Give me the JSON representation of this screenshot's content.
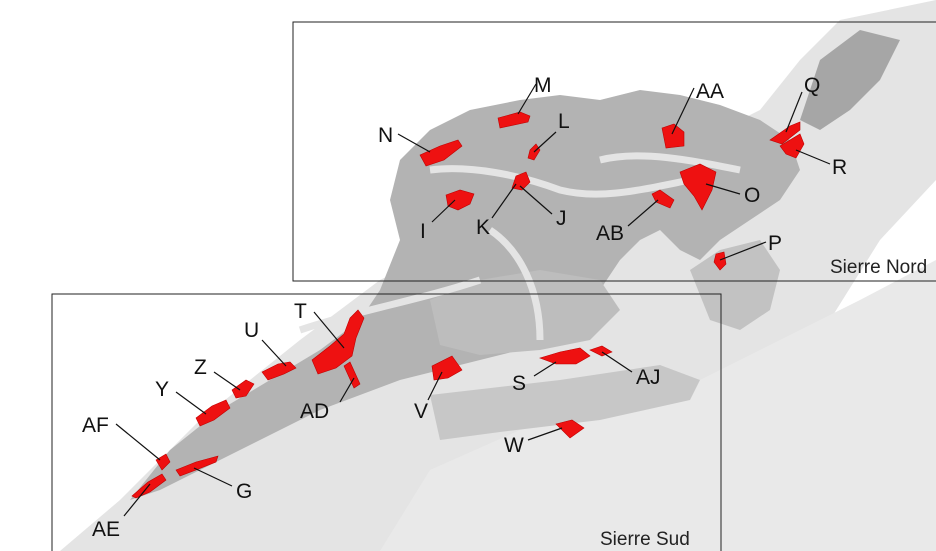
{
  "frames": {
    "north": {
      "title": "Sierre Nord"
    },
    "south": {
      "title": "Sierre Sud"
    }
  },
  "colors": {
    "background": "#ffffff",
    "valley": "#e6e6e6",
    "built": "#b4b4b4",
    "built_dark": "#9c9c9c",
    "highlight": "#ee1111",
    "frame": "#222222"
  },
  "areas": [
    "I",
    "J",
    "K",
    "L",
    "M",
    "N",
    "O",
    "P",
    "Q",
    "R",
    "AA",
    "AB",
    "T",
    "U",
    "Z",
    "Y",
    "AF",
    "AE",
    "G",
    "AD",
    "V",
    "S",
    "AJ",
    "W"
  ]
}
